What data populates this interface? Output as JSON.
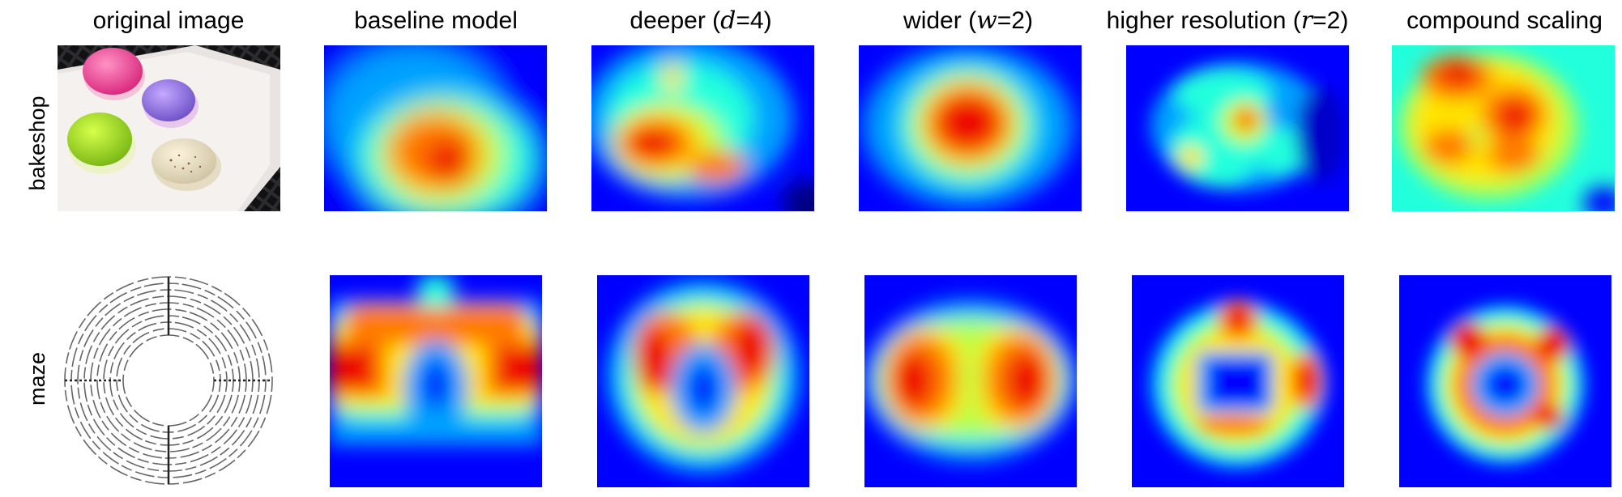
{
  "columns": [
    {
      "id": "original",
      "title": "original image"
    },
    {
      "id": "baseline",
      "title": "baseline model"
    },
    {
      "id": "deeper",
      "title_prefix": "deeper (",
      "param": "d",
      "param_value": "=4)"
    },
    {
      "id": "wider",
      "title_prefix": "wider (",
      "param": "w",
      "param_value": "=2)"
    },
    {
      "id": "resolution",
      "title_prefix": "higher resolution (",
      "param": "r",
      "param_value": "=2)"
    },
    {
      "id": "compound",
      "title": "compound scaling"
    }
  ],
  "rows": [
    {
      "id": "bakeshop",
      "label": "bakeshop"
    },
    {
      "id": "maze",
      "label": "maze"
    }
  ],
  "colormap": [
    "#00007f",
    "#0000ff",
    "#00a0ff",
    "#22ffdd",
    "#b6ff4a",
    "#ffe600",
    "#ff7a00",
    "#ee0000",
    "#8a0000"
  ]
}
